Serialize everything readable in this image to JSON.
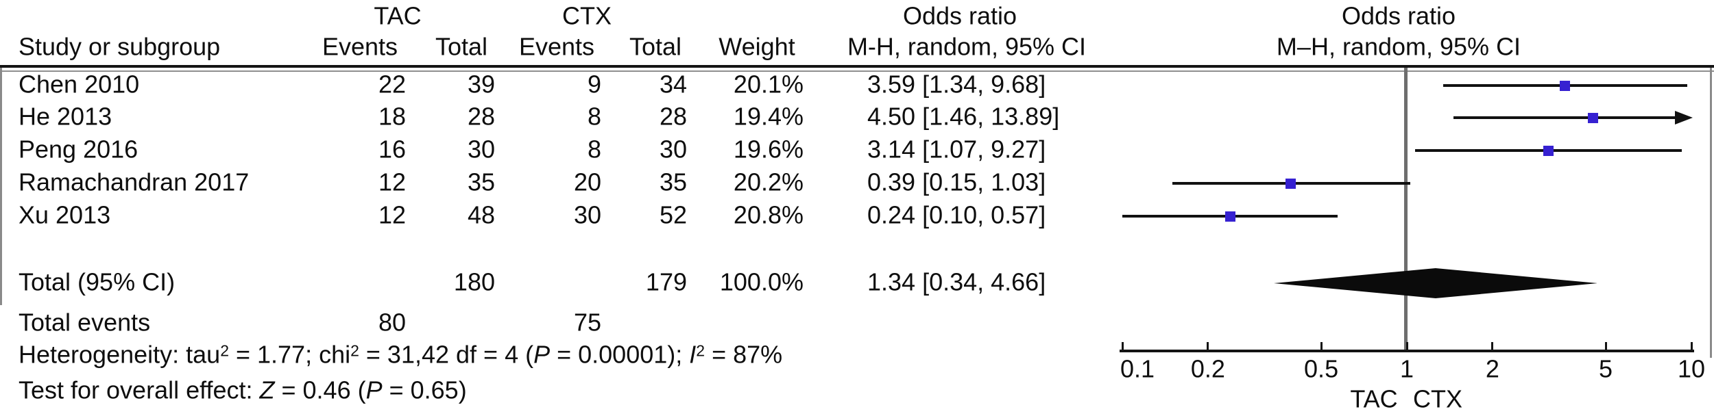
{
  "table": {
    "header": {
      "study": "Study or subgroup",
      "tac_group": "TAC",
      "ctx_group": "CTX",
      "tac_events": "Events",
      "tac_total": "Total",
      "ctx_events": "Events",
      "ctx_total": "Total",
      "weight": "Weight",
      "or_text_line1": "Odds ratio",
      "or_text_line2": "M-H, random, 95% CI",
      "or_plot_line1": "Odds ratio",
      "or_plot_line2": "M–H, random, 95% CI"
    },
    "rows": [
      {
        "study": "Chen 2010",
        "tac_events": "22",
        "tac_total": "39",
        "ctx_events": "9",
        "ctx_total": "34",
        "weight": "20.1%",
        "or_ci": "3.59 [1.34, 9.68]"
      },
      {
        "study": "He 2013",
        "tac_events": "18",
        "tac_total": "28",
        "ctx_events": "8",
        "ctx_total": "28",
        "weight": "19.4%",
        "or_ci": "4.50 [1.46, 13.89]"
      },
      {
        "study": "Peng 2016",
        "tac_events": "16",
        "tac_total": "30",
        "ctx_events": "8",
        "ctx_total": "30",
        "weight": "19.6%",
        "or_ci": "3.14 [1.07, 9.27]"
      },
      {
        "study": "Ramachandran 2017",
        "tac_events": "12",
        "tac_total": "35",
        "ctx_events": "20",
        "ctx_total": "35",
        "weight": "20.2%",
        "or_ci": "0.39 [0.15, 1.03]"
      },
      {
        "study": "Xu 2013",
        "tac_events": "12",
        "tac_total": "48",
        "ctx_events": "30",
        "ctx_total": "52",
        "weight": "20.8%",
        "or_ci": "0.24 [0.10, 0.57]"
      }
    ],
    "total_row": {
      "label": "Total (95% CI)",
      "tac_total": "180",
      "ctx_total": "179",
      "weight": "100.0%",
      "or_ci": "1.34 [0.34, 4.66]"
    },
    "total_events_row": {
      "label": "Total events",
      "tac_events": "80",
      "ctx_events": "75"
    },
    "heterogeneity_segments": [
      {
        "t": "Heterogeneity: tau"
      },
      {
        "sup": "2"
      },
      {
        "t": " = 1.77; chi"
      },
      {
        "sup": "2"
      },
      {
        "t": " = 31,42 df = 4 ("
      },
      {
        "i": "P"
      },
      {
        "t": " = 0.00001); "
      },
      {
        "i": "I"
      },
      {
        "sup": "2"
      },
      {
        "t": " = 87%"
      }
    ],
    "overall_effect_segments": [
      {
        "t": "Test for overall effect: "
      },
      {
        "i": "Z"
      },
      {
        "t": " = 0.46 ("
      },
      {
        "i": "P"
      },
      {
        "t": " = 0.65)"
      }
    ]
  },
  "chart_data": {
    "type": "forest",
    "x_scale": "log10",
    "xlim": [
      0.1,
      10
    ],
    "null_line": 1,
    "ticks": [
      0.1,
      0.2,
      0.5,
      1,
      2,
      5,
      10
    ],
    "tick_labels": [
      "0.1",
      "0.2",
      "0.5",
      "1",
      "2",
      "5",
      "10"
    ],
    "favours_left_label": "TAC",
    "favours_right_label": "CTX",
    "studies": [
      {
        "label": "Chen 2010",
        "or": 3.59,
        "ci_low": 1.34,
        "ci_high": 9.68
      },
      {
        "label": "He 2013",
        "or": 4.5,
        "ci_low": 1.46,
        "ci_high": 13.89
      },
      {
        "label": "Peng 2016",
        "or": 3.14,
        "ci_low": 1.07,
        "ci_high": 9.27
      },
      {
        "label": "Ramachandran 2017",
        "or": 0.39,
        "ci_low": 0.15,
        "ci_high": 1.03
      },
      {
        "label": "Xu 2013",
        "or": 0.24,
        "ci_low": 0.1,
        "ci_high": 0.57
      }
    ],
    "diamond": {
      "or": 1.34,
      "ci_low": 0.34,
      "ci_high": 4.66
    }
  },
  "colors": {
    "marker_blue": "#3621d1",
    "ink": "#111111",
    "null_line_gray": "#6e6e6e",
    "frame_gray": "#8a8a8a"
  }
}
